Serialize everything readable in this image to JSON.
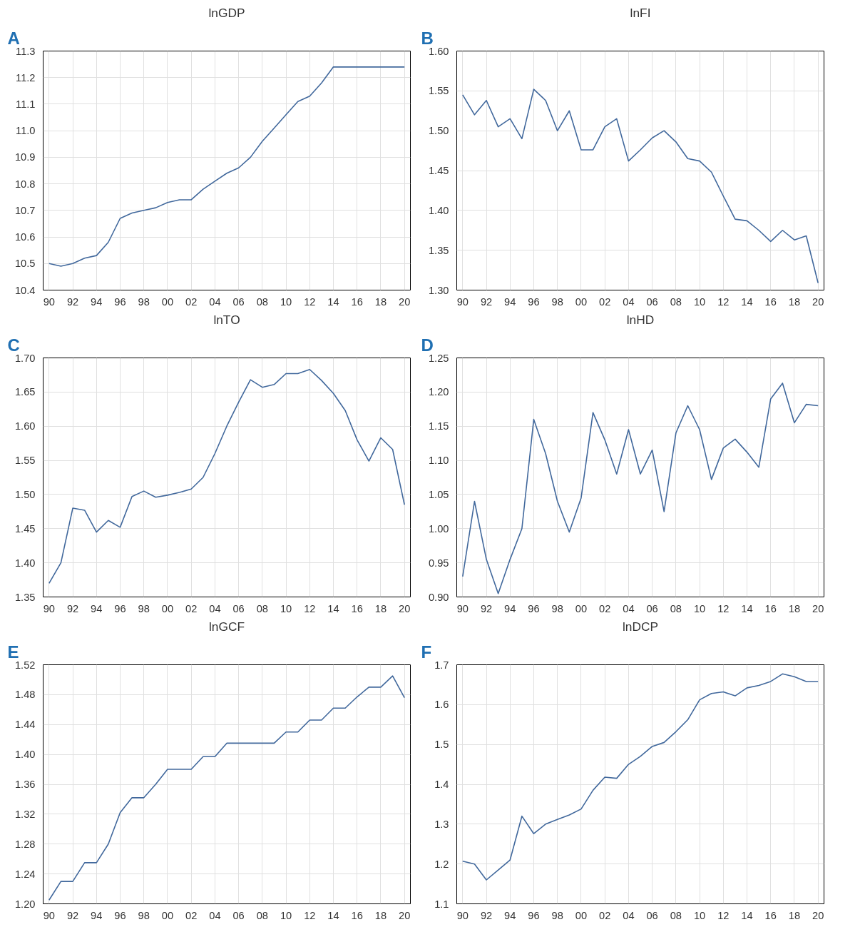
{
  "chart_data": [
    {
      "type": "line",
      "title": "lnGDP",
      "annotations": [
        "A"
      ],
      "x": [
        1990,
        1991,
        1992,
        1993,
        1994,
        1995,
        1996,
        1997,
        1998,
        1999,
        2000,
        2001,
        2002,
        2003,
        2004,
        2005,
        2006,
        2007,
        2008,
        2009,
        2010,
        2011,
        2012,
        2013,
        2014,
        2015,
        2016,
        2017,
        2018,
        2019,
        2020
      ],
      "series": [
        {
          "color": "#41689c",
          "values": [
            10.5,
            10.49,
            10.5,
            10.52,
            10.53,
            10.58,
            10.67,
            10.69,
            10.7,
            10.71,
            10.73,
            10.74,
            10.74,
            10.78,
            10.81,
            10.84,
            10.86,
            10.9,
            10.96,
            11.01,
            11.06,
            11.11,
            11.13,
            11.18,
            11.24,
            11.24,
            11.24,
            11.24,
            11.24,
            11.24,
            11.24
          ]
        }
      ],
      "xlim": [
        1989.5,
        2020.5
      ],
      "xticks": [
        {
          "value": 1990,
          "label": "90"
        },
        {
          "value": 1992,
          "label": "92"
        },
        {
          "value": 1994,
          "label": "94"
        },
        {
          "value": 1996,
          "label": "96"
        },
        {
          "value": 1998,
          "label": "98"
        },
        {
          "value": 2000,
          "label": "00"
        },
        {
          "value": 2002,
          "label": "02"
        },
        {
          "value": 2004,
          "label": "04"
        },
        {
          "value": 2006,
          "label": "06"
        },
        {
          "value": 2008,
          "label": "08"
        },
        {
          "value": 2010,
          "label": "10"
        },
        {
          "value": 2012,
          "label": "12"
        },
        {
          "value": 2014,
          "label": "14"
        },
        {
          "value": 2016,
          "label": "16"
        },
        {
          "value": 2018,
          "label": "18"
        },
        {
          "value": 2020,
          "label": "20"
        }
      ],
      "ylim": [
        10.4,
        11.3
      ],
      "yticks": [
        {
          "value": 10.4,
          "label": "10.4"
        },
        {
          "value": 10.5,
          "label": "10.5"
        },
        {
          "value": 10.6,
          "label": "10.6"
        },
        {
          "value": 10.7,
          "label": "10.7"
        },
        {
          "value": 10.8,
          "label": "10.8"
        },
        {
          "value": 10.9,
          "label": "10.9"
        },
        {
          "value": 11.0,
          "label": "11.0"
        },
        {
          "value": 11.1,
          "label": "11.1"
        },
        {
          "value": 11.2,
          "label": "11.2"
        },
        {
          "value": 11.3,
          "label": "11.3"
        }
      ],
      "grid": true
    },
    {
      "type": "line",
      "title": "lnFI",
      "annotations": [
        "B"
      ],
      "x": [
        1990,
        1991,
        1992,
        1993,
        1994,
        1995,
        1996,
        1997,
        1998,
        1999,
        2000,
        2001,
        2002,
        2003,
        2004,
        2005,
        2006,
        2007,
        2008,
        2009,
        2010,
        2011,
        2012,
        2013,
        2014,
        2015,
        2016,
        2017,
        2018,
        2019,
        2020
      ],
      "series": [
        {
          "color": "#41689c",
          "values": [
            1.545,
            1.52,
            1.538,
            1.505,
            1.515,
            1.49,
            1.552,
            1.538,
            1.5,
            1.525,
            1.476,
            1.476,
            1.505,
            1.515,
            1.462,
            1.476,
            1.491,
            1.5,
            1.486,
            1.465,
            1.462,
            1.448,
            1.418,
            1.389,
            1.387,
            1.375,
            1.361,
            1.375,
            1.363,
            1.368,
            1.309
          ]
        }
      ],
      "xlim": [
        1989.5,
        2020.5
      ],
      "xticks": [
        {
          "value": 1990,
          "label": "90"
        },
        {
          "value": 1992,
          "label": "92"
        },
        {
          "value": 1994,
          "label": "94"
        },
        {
          "value": 1996,
          "label": "96"
        },
        {
          "value": 1998,
          "label": "98"
        },
        {
          "value": 2000,
          "label": "00"
        },
        {
          "value": 2002,
          "label": "02"
        },
        {
          "value": 2004,
          "label": "04"
        },
        {
          "value": 2006,
          "label": "06"
        },
        {
          "value": 2008,
          "label": "08"
        },
        {
          "value": 2010,
          "label": "10"
        },
        {
          "value": 2012,
          "label": "12"
        },
        {
          "value": 2014,
          "label": "14"
        },
        {
          "value": 2016,
          "label": "16"
        },
        {
          "value": 2018,
          "label": "18"
        },
        {
          "value": 2020,
          "label": "20"
        }
      ],
      "ylim": [
        1.3,
        1.6
      ],
      "yticks": [
        {
          "value": 1.3,
          "label": "1.30"
        },
        {
          "value": 1.35,
          "label": "1.35"
        },
        {
          "value": 1.4,
          "label": "1.40"
        },
        {
          "value": 1.45,
          "label": "1.45"
        },
        {
          "value": 1.5,
          "label": "1.50"
        },
        {
          "value": 1.55,
          "label": "1.55"
        },
        {
          "value": 1.6,
          "label": "1.60"
        }
      ],
      "grid": true
    },
    {
      "type": "line",
      "title": "lnTO",
      "annotations": [
        "C"
      ],
      "x": [
        1990,
        1991,
        1992,
        1993,
        1994,
        1995,
        1996,
        1997,
        1998,
        1999,
        2000,
        2001,
        2002,
        2003,
        2004,
        2005,
        2006,
        2007,
        2008,
        2009,
        2010,
        2011,
        2012,
        2013,
        2014,
        2015,
        2016,
        2017,
        2018,
        2019,
        2020
      ],
      "series": [
        {
          "color": "#41689c",
          "values": [
            1.37,
            1.4,
            1.48,
            1.477,
            1.445,
            1.462,
            1.452,
            1.497,
            1.505,
            1.496,
            1.499,
            1.503,
            1.508,
            1.525,
            1.56,
            1.6,
            1.635,
            1.668,
            1.657,
            1.661,
            1.677,
            1.677,
            1.683,
            1.667,
            1.648,
            1.623,
            1.58,
            1.549,
            1.583,
            1.566,
            1.485
          ]
        }
      ],
      "xlim": [
        1989.5,
        2020.5
      ],
      "xticks": [
        {
          "value": 1990,
          "label": "90"
        },
        {
          "value": 1992,
          "label": "92"
        },
        {
          "value": 1994,
          "label": "94"
        },
        {
          "value": 1996,
          "label": "96"
        },
        {
          "value": 1998,
          "label": "98"
        },
        {
          "value": 2000,
          "label": "00"
        },
        {
          "value": 2002,
          "label": "02"
        },
        {
          "value": 2004,
          "label": "04"
        },
        {
          "value": 2006,
          "label": "06"
        },
        {
          "value": 2008,
          "label": "08"
        },
        {
          "value": 2010,
          "label": "10"
        },
        {
          "value": 2012,
          "label": "12"
        },
        {
          "value": 2014,
          "label": "14"
        },
        {
          "value": 2016,
          "label": "16"
        },
        {
          "value": 2018,
          "label": "18"
        },
        {
          "value": 2020,
          "label": "20"
        }
      ],
      "ylim": [
        1.35,
        1.7
      ],
      "yticks": [
        {
          "value": 1.35,
          "label": "1.35"
        },
        {
          "value": 1.4,
          "label": "1.40"
        },
        {
          "value": 1.45,
          "label": "1.45"
        },
        {
          "value": 1.5,
          "label": "1.50"
        },
        {
          "value": 1.55,
          "label": "1.55"
        },
        {
          "value": 1.6,
          "label": "1.60"
        },
        {
          "value": 1.65,
          "label": "1.65"
        },
        {
          "value": 1.7,
          "label": "1.70"
        }
      ],
      "grid": true
    },
    {
      "type": "line",
      "title": "lnHD",
      "annotations": [
        "D"
      ],
      "x": [
        1990,
        1991,
        1992,
        1993,
        1994,
        1995,
        1996,
        1997,
        1998,
        1999,
        2000,
        2001,
        2002,
        2003,
        2004,
        2005,
        2006,
        2007,
        2008,
        2009,
        2010,
        2011,
        2012,
        2013,
        2014,
        2015,
        2016,
        2017,
        2018,
        2019,
        2020
      ],
      "series": [
        {
          "color": "#41689c",
          "values": [
            0.93,
            1.04,
            0.955,
            0.905,
            0.955,
            1.0,
            1.16,
            1.11,
            1.04,
            0.995,
            1.045,
            1.17,
            1.13,
            1.08,
            1.145,
            1.08,
            1.115,
            1.025,
            1.14,
            1.18,
            1.145,
            1.072,
            1.118,
            1.131,
            1.112,
            1.09,
            1.19,
            1.213,
            1.155,
            1.182,
            1.18
          ]
        }
      ],
      "xlim": [
        1989.5,
        2020.5
      ],
      "xticks": [
        {
          "value": 1990,
          "label": "90"
        },
        {
          "value": 1992,
          "label": "92"
        },
        {
          "value": 1994,
          "label": "94"
        },
        {
          "value": 1996,
          "label": "96"
        },
        {
          "value": 1998,
          "label": "98"
        },
        {
          "value": 2000,
          "label": "00"
        },
        {
          "value": 2002,
          "label": "02"
        },
        {
          "value": 2004,
          "label": "04"
        },
        {
          "value": 2006,
          "label": "06"
        },
        {
          "value": 2008,
          "label": "08"
        },
        {
          "value": 2010,
          "label": "10"
        },
        {
          "value": 2012,
          "label": "12"
        },
        {
          "value": 2014,
          "label": "14"
        },
        {
          "value": 2016,
          "label": "16"
        },
        {
          "value": 2018,
          "label": "18"
        },
        {
          "value": 2020,
          "label": "20"
        }
      ],
      "ylim": [
        0.9,
        1.25
      ],
      "yticks": [
        {
          "value": 0.9,
          "label": "0.90"
        },
        {
          "value": 0.95,
          "label": "0.95"
        },
        {
          "value": 1.0,
          "label": "1.00"
        },
        {
          "value": 1.05,
          "label": "1.05"
        },
        {
          "value": 1.1,
          "label": "1.10"
        },
        {
          "value": 1.15,
          "label": "1.15"
        },
        {
          "value": 1.2,
          "label": "1.20"
        },
        {
          "value": 1.25,
          "label": "1.25"
        }
      ],
      "grid": true
    },
    {
      "type": "line",
      "title": "lnGCF",
      "annotations": [
        "E"
      ],
      "x": [
        1990,
        1991,
        1992,
        1993,
        1994,
        1995,
        1996,
        1997,
        1998,
        1999,
        2000,
        2001,
        2002,
        2003,
        2004,
        2005,
        2006,
        2007,
        2008,
        2009,
        2010,
        2011,
        2012,
        2013,
        2014,
        2015,
        2016,
        2017,
        2018,
        2019,
        2020
      ],
      "series": [
        {
          "color": "#41689c",
          "values": [
            1.205,
            1.23,
            1.23,
            1.255,
            1.255,
            1.28,
            1.322,
            1.342,
            1.342,
            1.36,
            1.38,
            1.38,
            1.38,
            1.397,
            1.397,
            1.415,
            1.415,
            1.415,
            1.415,
            1.415,
            1.43,
            1.43,
            1.446,
            1.446,
            1.462,
            1.462,
            1.477,
            1.49,
            1.49,
            1.505,
            1.476
          ]
        }
      ],
      "xlim": [
        1989.5,
        2020.5
      ],
      "xticks": [
        {
          "value": 1990,
          "label": "90"
        },
        {
          "value": 1992,
          "label": "92"
        },
        {
          "value": 1994,
          "label": "94"
        },
        {
          "value": 1996,
          "label": "96"
        },
        {
          "value": 1998,
          "label": "98"
        },
        {
          "value": 2000,
          "label": "00"
        },
        {
          "value": 2002,
          "label": "02"
        },
        {
          "value": 2004,
          "label": "04"
        },
        {
          "value": 2006,
          "label": "06"
        },
        {
          "value": 2008,
          "label": "08"
        },
        {
          "value": 2010,
          "label": "10"
        },
        {
          "value": 2012,
          "label": "12"
        },
        {
          "value": 2014,
          "label": "14"
        },
        {
          "value": 2016,
          "label": "16"
        },
        {
          "value": 2018,
          "label": "18"
        },
        {
          "value": 2020,
          "label": "20"
        }
      ],
      "ylim": [
        1.2,
        1.52
      ],
      "yticks": [
        {
          "value": 1.2,
          "label": "1.20"
        },
        {
          "value": 1.24,
          "label": "1.24"
        },
        {
          "value": 1.28,
          "label": "1.28"
        },
        {
          "value": 1.32,
          "label": "1.32"
        },
        {
          "value": 1.36,
          "label": "1.36"
        },
        {
          "value": 1.4,
          "label": "1.40"
        },
        {
          "value": 1.44,
          "label": "1.44"
        },
        {
          "value": 1.48,
          "label": "1.48"
        },
        {
          "value": 1.52,
          "label": "1.52"
        }
      ],
      "grid": true
    },
    {
      "type": "line",
      "title": "lnDCP",
      "annotations": [
        "F"
      ],
      "x": [
        1990,
        1991,
        1992,
        1993,
        1994,
        1995,
        1996,
        1997,
        1998,
        1999,
        2000,
        2001,
        2002,
        2003,
        2004,
        2005,
        2006,
        2007,
        2008,
        2009,
        2010,
        2011,
        2012,
        2013,
        2014,
        2015,
        2016,
        2017,
        2018,
        2019,
        2020
      ],
      "series": [
        {
          "color": "#41689c",
          "values": [
            1.207,
            1.2,
            1.16,
            1.185,
            1.21,
            1.32,
            1.276,
            1.3,
            1.312,
            1.323,
            1.338,
            1.385,
            1.418,
            1.415,
            1.45,
            1.47,
            1.495,
            1.505,
            1.532,
            1.562,
            1.612,
            1.628,
            1.632,
            1.622,
            1.642,
            1.648,
            1.658,
            1.677,
            1.67,
            1.658,
            1.658
          ]
        }
      ],
      "xlim": [
        1989.5,
        2020.5
      ],
      "xticks": [
        {
          "value": 1990,
          "label": "90"
        },
        {
          "value": 1992,
          "label": "92"
        },
        {
          "value": 1994,
          "label": "94"
        },
        {
          "value": 1996,
          "label": "96"
        },
        {
          "value": 1998,
          "label": "98"
        },
        {
          "value": 2000,
          "label": "00"
        },
        {
          "value": 2002,
          "label": "02"
        },
        {
          "value": 2004,
          "label": "04"
        },
        {
          "value": 2006,
          "label": "06"
        },
        {
          "value": 2008,
          "label": "08"
        },
        {
          "value": 2010,
          "label": "10"
        },
        {
          "value": 2012,
          "label": "12"
        },
        {
          "value": 2014,
          "label": "14"
        },
        {
          "value": 2016,
          "label": "16"
        },
        {
          "value": 2018,
          "label": "18"
        },
        {
          "value": 2020,
          "label": "20"
        }
      ],
      "ylim": [
        1.1,
        1.7
      ],
      "yticks": [
        {
          "value": 1.1,
          "label": "1.1"
        },
        {
          "value": 1.2,
          "label": "1.2"
        },
        {
          "value": 1.3,
          "label": "1.3"
        },
        {
          "value": 1.4,
          "label": "1.4"
        },
        {
          "value": 1.5,
          "label": "1.5"
        },
        {
          "value": 1.6,
          "label": "1.6"
        },
        {
          "value": 1.7,
          "label": "1.7"
        }
      ],
      "grid": true
    }
  ]
}
